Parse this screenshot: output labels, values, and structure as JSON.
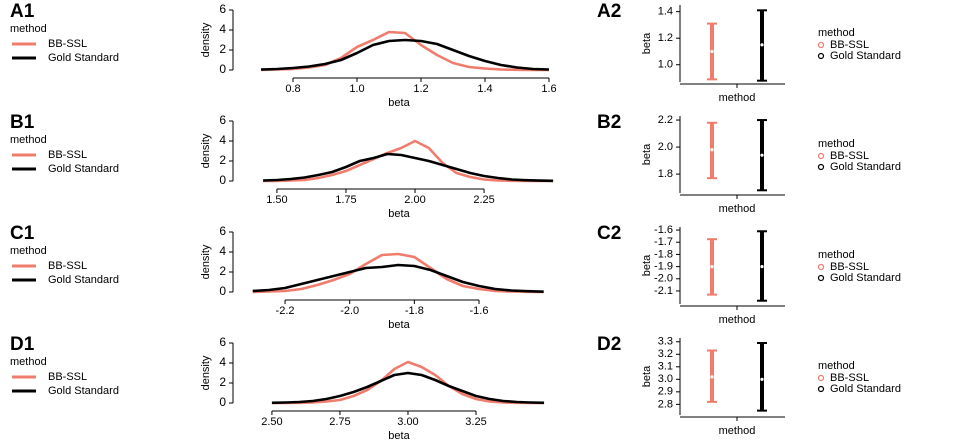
{
  "chart_data": [
    {
      "type": "line",
      "panel": "A1",
      "legend_title": "method",
      "xlabel": "beta",
      "ylabel": "density",
      "x": [
        0.7,
        0.75,
        0.8,
        0.85,
        0.9,
        0.95,
        1.0,
        1.05,
        1.1,
        1.15,
        1.2,
        1.25,
        1.3,
        1.35,
        1.4,
        1.45,
        1.5,
        1.55,
        1.6
      ],
      "series": [
        {
          "name": "BB-SSL",
          "color": "#f07c6e",
          "values": [
            0,
            0.05,
            0.1,
            0.25,
            0.5,
            1.2,
            2.3,
            3.0,
            3.8,
            3.7,
            2.5,
            1.5,
            0.7,
            0.3,
            0.15,
            0.05,
            0.02,
            0,
            0
          ]
        },
        {
          "name": "Gold Standard",
          "color": "#000000",
          "values": [
            0.05,
            0.1,
            0.2,
            0.35,
            0.6,
            1.0,
            1.7,
            2.5,
            2.9,
            3.0,
            2.9,
            2.6,
            2.0,
            1.4,
            0.9,
            0.5,
            0.25,
            0.1,
            0.05
          ]
        }
      ],
      "xlim": [
        0.6125,
        1.65
      ],
      "ylim": [
        -0.5,
        6.5
      ],
      "xticks": [
        0.8,
        {
          "value": 1,
          "label": "1.0"
        },
        1.2,
        1.4,
        1.6
      ],
      "yticks": [
        0,
        2,
        4,
        6
      ]
    },
    {
      "type": "errorbar",
      "panel": "A2",
      "legend_title": "method",
      "xlabel": "method",
      "ylabel": "beta",
      "series": [
        {
          "name": "BB-SSL",
          "color": "#f07c6e",
          "values": [
            1.1
          ],
          "lower": [
            0.89
          ],
          "upper": [
            1.31
          ]
        },
        {
          "name": "Gold Standard",
          "color": "#000000",
          "values": [
            1.15
          ],
          "lower": [
            0.88
          ],
          "upper": [
            1.41
          ]
        }
      ],
      "ylim": [
        0.87,
        1.45
      ],
      "yticks": [
        {
          "value": 1,
          "label": "1.0"
        },
        1.2,
        1.4
      ]
    },
    {
      "type": "line",
      "panel": "B1",
      "legend_title": "method",
      "xlabel": "beta",
      "ylabel": "density",
      "x": [
        1.45,
        1.5,
        1.55,
        1.6,
        1.65,
        1.7,
        1.75,
        1.8,
        1.85,
        1.9,
        1.95,
        2.0,
        2.05,
        2.1,
        2.15,
        2.2,
        2.25,
        2.3,
        2.35,
        2.4,
        2.45,
        2.5
      ],
      "series": [
        {
          "name": "BB-SSL",
          "color": "#f07c6e",
          "values": [
            0,
            0,
            0.05,
            0.1,
            0.3,
            0.6,
            1.0,
            1.6,
            2.2,
            2.8,
            3.3,
            4.0,
            3.3,
            1.8,
            0.8,
            0.4,
            0.15,
            0.05,
            0.02,
            0,
            0,
            0
          ]
        },
        {
          "name": "Gold Standard",
          "color": "#000000",
          "values": [
            0.05,
            0.1,
            0.2,
            0.35,
            0.6,
            0.9,
            1.4,
            2.0,
            2.3,
            2.7,
            2.6,
            2.3,
            2.0,
            1.6,
            1.2,
            0.8,
            0.5,
            0.3,
            0.15,
            0.08,
            0.04,
            0.02
          ]
        }
      ],
      "xlim": [
        1.341,
        2.543
      ],
      "ylim": [
        -0.5,
        6.5
      ],
      "xticks": [
        {
          "value": 1.5,
          "label": "1.50"
        },
        1.75,
        {
          "value": 2,
          "label": "2.00"
        },
        2.25
      ],
      "yticks": [
        0,
        2,
        4,
        6
      ]
    },
    {
      "type": "errorbar",
      "panel": "B2",
      "legend_title": "method",
      "xlabel": "method",
      "ylabel": "beta",
      "series": [
        {
          "name": "BB-SSL",
          "color": "#f07c6e",
          "values": [
            1.98
          ],
          "lower": [
            1.77
          ],
          "upper": [
            2.18
          ]
        },
        {
          "name": "Gold Standard",
          "color": "#000000",
          "values": [
            1.94
          ],
          "lower": [
            1.68
          ],
          "upper": [
            2.2
          ]
        }
      ],
      "ylim": [
        1.66,
        2.23
      ],
      "yticks": [
        1.8,
        {
          "value": 2,
          "label": "2.0"
        },
        2.2
      ]
    },
    {
      "type": "line",
      "panel": "C1",
      "legend_title": "method",
      "xlabel": "beta",
      "ylabel": "density",
      "x": [
        -2.3,
        -2.25,
        -2.2,
        -2.15,
        -2.1,
        -2.05,
        -2.0,
        -1.95,
        -1.9,
        -1.85,
        -1.8,
        -1.75,
        -1.7,
        -1.65,
        -1.6,
        -1.55,
        -1.5,
        -1.45,
        -1.4
      ],
      "series": [
        {
          "name": "BB-SSL",
          "color": "#f07c6e",
          "values": [
            0,
            0.05,
            0.1,
            0.3,
            0.7,
            1.2,
            1.8,
            2.8,
            3.7,
            3.8,
            3.5,
            2.4,
            1.3,
            0.6,
            0.3,
            0.1,
            0.05,
            0.02,
            0
          ]
        },
        {
          "name": "Gold Standard",
          "color": "#000000",
          "values": [
            0.1,
            0.2,
            0.4,
            0.8,
            1.2,
            1.6,
            2.0,
            2.4,
            2.5,
            2.7,
            2.6,
            2.2,
            1.6,
            1.0,
            0.6,
            0.3,
            0.15,
            0.08,
            0.03
          ]
        }
      ],
      "xlim": [
        -2.361,
        -1.334
      ],
      "ylim": [
        -0.5,
        6.5
      ],
      "xticks": [
        -2.2,
        {
          "value": -2,
          "label": "-2.0"
        },
        -1.8,
        -1.6
      ],
      "yticks": [
        0,
        2,
        4,
        6
      ]
    },
    {
      "type": "errorbar",
      "panel": "C2",
      "legend_title": "method",
      "xlabel": "method",
      "ylabel": "beta",
      "series": [
        {
          "name": "BB-SSL",
          "color": "#f07c6e",
          "values": [
            -1.9
          ],
          "lower": [
            -2.13
          ],
          "upper": [
            -1.675
          ]
        },
        {
          "name": "Gold Standard",
          "color": "#000000",
          "values": [
            -1.9
          ],
          "lower": [
            -2.18
          ],
          "upper": [
            -1.61
          ]
        }
      ],
      "ylim": [
        -2.207,
        -1.575
      ],
      "yticks": [
        -2.1,
        {
          "value": -2,
          "label": "-2.0"
        },
        -1.9,
        -1.8,
        -1.7,
        -1.6
      ]
    },
    {
      "type": "line",
      "panel": "D1",
      "legend_title": "method",
      "xlabel": "beta",
      "ylabel": "density",
      "x": [
        2.5,
        2.55,
        2.6,
        2.65,
        2.7,
        2.75,
        2.8,
        2.85,
        2.9,
        2.95,
        3.0,
        3.05,
        3.1,
        3.15,
        3.2,
        3.25,
        3.3,
        3.35,
        3.4,
        3.45,
        3.5
      ],
      "series": [
        {
          "name": "BB-SSL",
          "color": "#f07c6e",
          "values": [
            0,
            0,
            0.02,
            0.05,
            0.15,
            0.3,
            0.7,
            1.3,
            2.2,
            3.4,
            4.1,
            3.6,
            2.8,
            1.7,
            0.9,
            0.4,
            0.15,
            0.05,
            0.02,
            0,
            0
          ]
        },
        {
          "name": "Gold Standard",
          "color": "#000000",
          "values": [
            0.02,
            0.05,
            0.1,
            0.2,
            0.4,
            0.7,
            1.1,
            1.6,
            2.2,
            2.8,
            3.0,
            2.8,
            2.3,
            1.7,
            1.2,
            0.7,
            0.4,
            0.2,
            0.1,
            0.05,
            0.02
          ]
        }
      ],
      "xlim": [
        2.357,
        3.577
      ],
      "ylim": [
        -0.5,
        6.5
      ],
      "xticks": [
        {
          "value": 2.5,
          "label": "2.50"
        },
        2.75,
        {
          "value": 3,
          "label": "3.00"
        },
        3.25
      ],
      "yticks": [
        0,
        2,
        4,
        6
      ]
    },
    {
      "type": "errorbar",
      "panel": "D2",
      "legend_title": "method",
      "xlabel": "method",
      "ylabel": "beta",
      "series": [
        {
          "name": "BB-SSL",
          "color": "#f07c6e",
          "values": [
            3.02
          ],
          "lower": [
            2.82
          ],
          "upper": [
            3.23
          ]
        },
        {
          "name": "Gold Standard",
          "color": "#000000",
          "values": [
            3.0
          ],
          "lower": [
            2.75
          ],
          "upper": [
            3.29
          ]
        }
      ],
      "ylim": [
        2.715,
        3.33
      ],
      "yticks": [
        2.8,
        2.9,
        {
          "value": 3,
          "label": "3.0"
        },
        3.1,
        3.2,
        3.3
      ]
    }
  ]
}
